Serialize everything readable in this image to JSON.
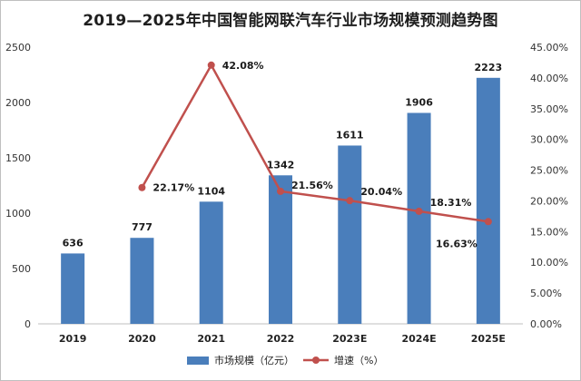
{
  "chart_data": {
    "type": "bar+line",
    "title": "2019—2025年中国智能网联汽车行业市场规模预测趋势图",
    "categories": [
      "2019",
      "2020",
      "2021",
      "2022",
      "2023E",
      "2024E",
      "2025E"
    ],
    "series": [
      {
        "name": "市场规模（亿元）",
        "type": "bar",
        "axis": "left",
        "color": "#4a7ebb",
        "values": [
          636,
          777,
          1104,
          1342,
          1611,
          1906,
          2223
        ],
        "labels": [
          "636",
          "777",
          "1104",
          "1342",
          "1611",
          "1906",
          "2223"
        ]
      },
      {
        "name": "增速（%）",
        "type": "line",
        "axis": "right",
        "color": "#c0504d",
        "values": [
          null,
          22.17,
          42.08,
          21.56,
          20.04,
          18.31,
          16.63
        ],
        "labels": [
          "",
          "22.17%",
          "42.08%",
          "21.56%",
          "20.04%",
          "18.31%",
          "16.63%"
        ]
      }
    ],
    "y_left": {
      "lim": [
        0,
        2500
      ],
      "ticks": [
        0,
        500,
        1000,
        1500,
        2000,
        2500
      ],
      "tick_labels": [
        "0",
        "500",
        "1000",
        "1500",
        "2000",
        "2500"
      ]
    },
    "y_right": {
      "lim": [
        0,
        45
      ],
      "ticks": [
        0,
        5,
        10,
        15,
        20,
        25,
        30,
        35,
        40,
        45
      ],
      "tick_labels": [
        "0.00%",
        "5.00%",
        "10.00%",
        "15.00%",
        "20.00%",
        "25.00%",
        "30.00%",
        "35.00%",
        "40.00%",
        "45.00%"
      ]
    },
    "grid": false,
    "legend": "bottom"
  }
}
